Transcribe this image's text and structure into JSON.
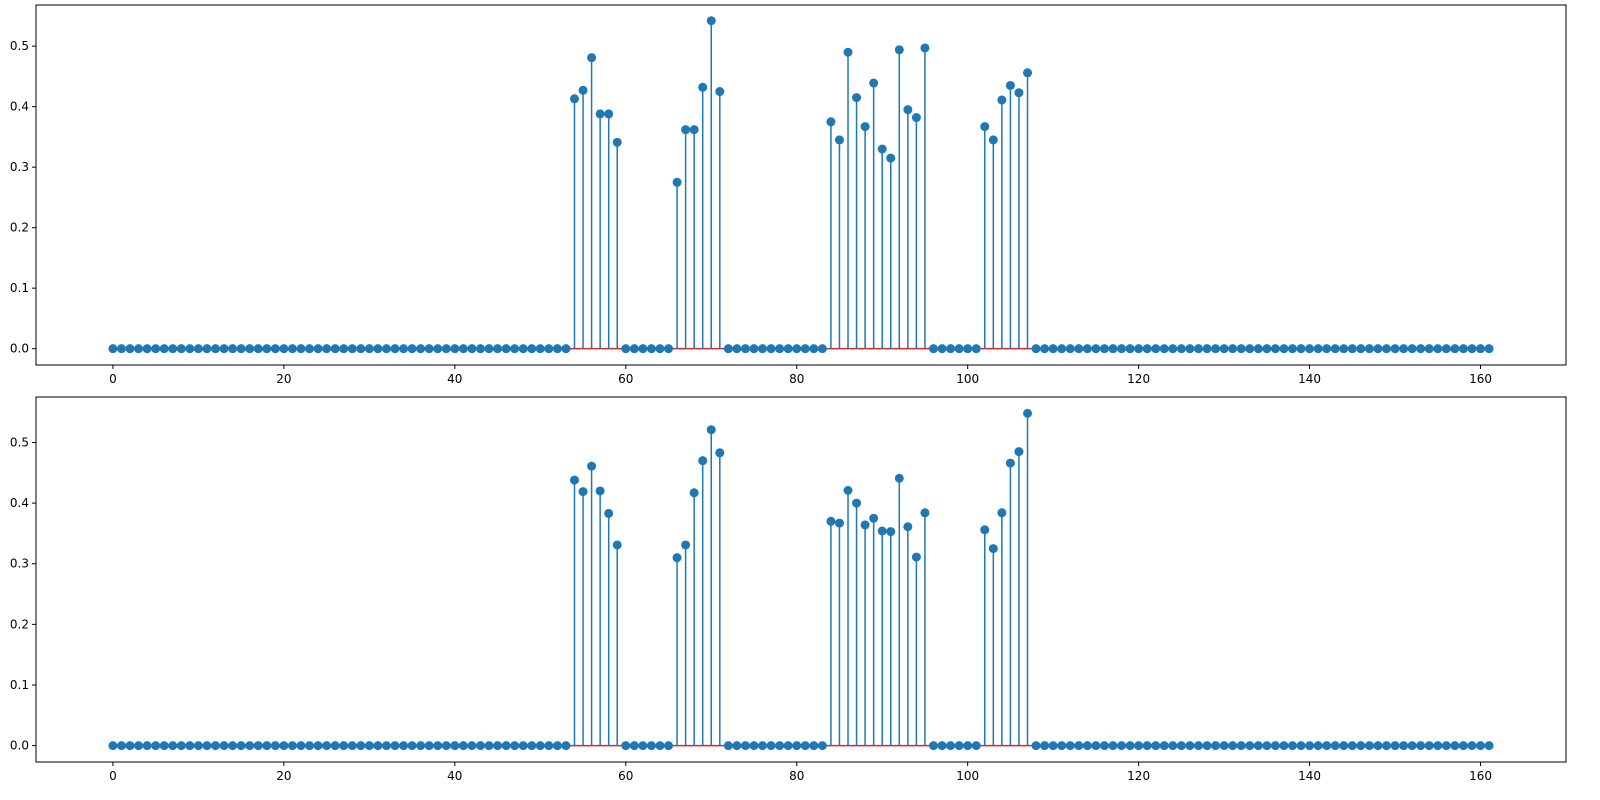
{
  "colors": {
    "stem": "#1f77b4",
    "baseline": "#d62728",
    "marker": "#1f77b4"
  },
  "chart_data": [
    {
      "type": "stem",
      "title": "",
      "xlabel": "",
      "ylabel": "",
      "xlim": [
        -9,
        170
      ],
      "ylim": [
        -0.027,
        0.568
      ],
      "grid": false,
      "xticks": [
        0,
        20,
        40,
        60,
        80,
        100,
        120,
        140,
        160
      ],
      "xtick_labels": [
        "0",
        "20",
        "40",
        "60",
        "80",
        "100",
        "120",
        "140",
        "160"
      ],
      "yticks": [
        0.0,
        0.1,
        0.2,
        0.3,
        0.4,
        0.5
      ],
      "ytick_labels": [
        "0.0",
        "0.1",
        "0.2",
        "0.3",
        "0.4",
        "0.5"
      ],
      "n_points": 162,
      "baseline": 0,
      "nonzero": {
        "54": 0.413,
        "55": 0.427,
        "56": 0.481,
        "57": 0.388,
        "58": 0.388,
        "59": 0.341,
        "66": 0.275,
        "67": 0.362,
        "68": 0.362,
        "69": 0.432,
        "70": 0.542,
        "71": 0.425,
        "84": 0.375,
        "85": 0.345,
        "86": 0.49,
        "87": 0.415,
        "88": 0.367,
        "89": 0.439,
        "90": 0.33,
        "91": 0.315,
        "92": 0.494,
        "93": 0.395,
        "94": 0.382,
        "95": 0.497,
        "102": 0.367,
        "103": 0.345,
        "104": 0.411,
        "105": 0.435,
        "106": 0.423,
        "107": 0.456
      }
    },
    {
      "type": "stem",
      "title": "",
      "xlabel": "",
      "ylabel": "",
      "xlim": [
        -9,
        170
      ],
      "ylim": [
        -0.027,
        0.575
      ],
      "grid": false,
      "xticks": [
        0,
        20,
        40,
        60,
        80,
        100,
        120,
        140,
        160
      ],
      "xtick_labels": [
        "0",
        "20",
        "40",
        "60",
        "80",
        "100",
        "120",
        "140",
        "160"
      ],
      "yticks": [
        0.0,
        0.1,
        0.2,
        0.3,
        0.4,
        0.5
      ],
      "ytick_labels": [
        "0.0",
        "0.1",
        "0.2",
        "0.3",
        "0.4",
        "0.5"
      ],
      "n_points": 162,
      "baseline": 0,
      "nonzero": {
        "54": 0.438,
        "55": 0.419,
        "56": 0.461,
        "57": 0.42,
        "58": 0.383,
        "59": 0.331,
        "66": 0.31,
        "67": 0.331,
        "68": 0.417,
        "69": 0.47,
        "70": 0.521,
        "71": 0.483,
        "84": 0.37,
        "85": 0.367,
        "86": 0.421,
        "87": 0.4,
        "88": 0.364,
        "89": 0.375,
        "90": 0.354,
        "91": 0.353,
        "92": 0.441,
        "93": 0.361,
        "94": 0.311,
        "95": 0.384,
        "102": 0.356,
        "103": 0.325,
        "104": 0.384,
        "105": 0.466,
        "106": 0.485,
        "107": 0.548
      }
    }
  ]
}
